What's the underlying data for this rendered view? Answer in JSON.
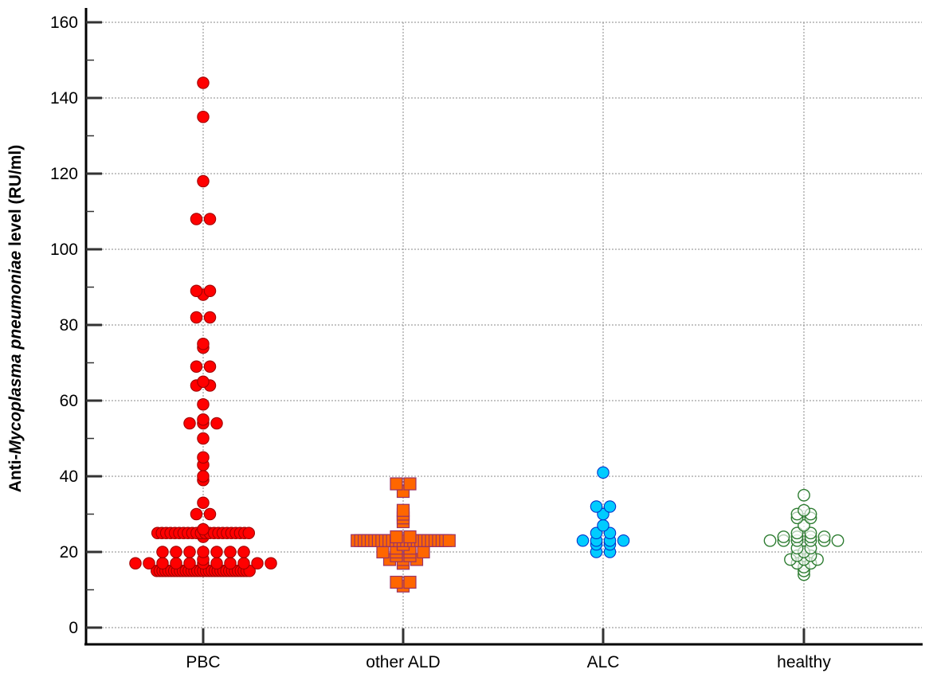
{
  "chart_data": {
    "type": "scatter",
    "subtype": "dot-plot",
    "title": "",
    "xlabel": "",
    "ylabel": "Anti-Mycoplasma pneumoniae level (RU/ml)",
    "ylabel_parts": [
      {
        "text": "Anti-",
        "italic": false
      },
      {
        "text": "Mycoplasma pneumoniae",
        "italic": true
      },
      {
        "text": " level (RU/ml)",
        "italic": false
      }
    ],
    "ylim": [
      0,
      160
    ],
    "yticks": [
      0,
      20,
      40,
      60,
      80,
      100,
      120,
      140,
      160
    ],
    "yminor_step": 10,
    "grid": true,
    "legend": null,
    "categories": [
      "PBC",
      "other ALD",
      "ALC",
      "healthy"
    ],
    "series": [
      {
        "name": "PBC",
        "marker": "circle",
        "fill": "#ff0000",
        "stroke": "#a00000",
        "values": [
          144,
          135,
          118,
          108,
          108,
          88,
          89,
          89,
          82,
          82,
          74,
          75,
          69,
          69,
          64,
          64,
          65,
          59,
          54,
          54,
          54,
          55,
          50,
          43,
          45,
          39,
          40,
          33,
          30,
          30,
          24,
          25,
          25,
          25,
          25,
          25,
          25,
          25,
          25,
          25,
          25,
          25,
          25,
          25,
          25,
          25,
          25,
          25,
          25,
          25,
          25,
          25,
          25,
          26,
          20,
          20,
          20,
          20,
          20,
          20,
          20,
          18,
          17,
          17,
          17,
          17,
          17,
          17,
          17,
          17,
          17,
          17,
          17,
          15,
          15,
          15,
          15,
          15,
          15,
          15,
          15,
          15,
          15,
          15,
          15,
          15,
          15,
          15,
          15,
          15,
          15,
          15,
          15,
          15,
          15,
          15,
          15,
          15,
          15,
          15,
          15,
          15,
          15,
          15,
          15,
          15
        ]
      },
      {
        "name": "other ALD",
        "marker": "square",
        "fill": "#ff6600",
        "stroke": "#993366",
        "values": [
          38,
          38,
          36,
          31,
          30,
          29,
          28,
          23,
          23,
          23,
          23,
          23,
          23,
          23,
          23,
          23,
          23,
          23,
          23,
          23,
          23,
          23,
          23,
          23,
          23,
          23,
          23,
          23,
          23,
          23,
          23,
          23,
          23,
          23,
          24,
          24,
          20,
          17,
          20,
          18,
          20,
          18,
          20,
          18,
          21,
          19,
          21,
          22,
          19,
          12,
          12,
          11
        ]
      },
      {
        "name": "ALC",
        "marker": "circle",
        "fill": "#00ccff",
        "stroke": "#0033cc",
        "values": [
          41,
          32,
          32,
          30,
          27,
          25,
          25,
          23,
          23,
          23,
          23,
          22,
          22,
          20,
          20
        ]
      },
      {
        "name": "healthy",
        "marker": "open-circle",
        "fill": "none",
        "stroke": "#2e7d32",
        "values": [
          35,
          30,
          30,
          31,
          29,
          29,
          27,
          23,
          23,
          23,
          23,
          23,
          23,
          24,
          24,
          24,
          24,
          25,
          25,
          21,
          20,
          21,
          17,
          17,
          18,
          18,
          18,
          19,
          19,
          16,
          15,
          14
        ]
      }
    ]
  },
  "axes": {
    "y_tick_labels": [
      "0",
      "20",
      "40",
      "60",
      "80",
      "100",
      "120",
      "140",
      "160"
    ],
    "x_tick_labels": [
      "PBC",
      "other ALD",
      "ALC",
      "healthy"
    ]
  }
}
